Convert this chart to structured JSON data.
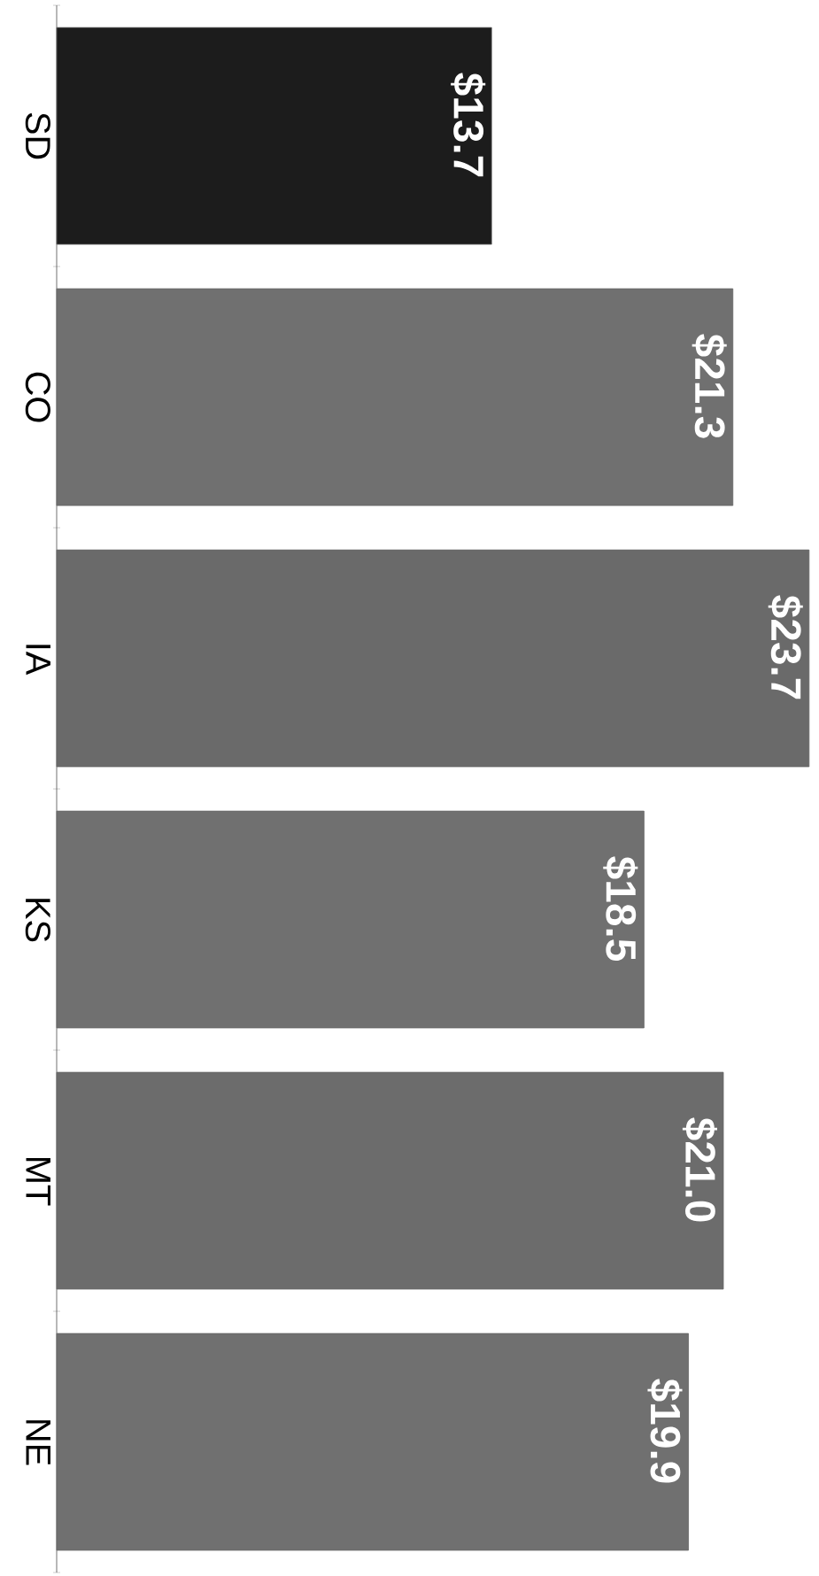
{
  "chart_data": {
    "type": "bar",
    "orientation": "horizontal",
    "categories": [
      "SD",
      "CO",
      "IA",
      "KS",
      "MT",
      "NE"
    ],
    "values": [
      13.7,
      21.3,
      23.7,
      18.5,
      21.0,
      19.9
    ],
    "value_labels": [
      "$13.7",
      "$21.3",
      "$23.7",
      "$18.5",
      "$21.0",
      "$19.9"
    ],
    "colors": [
      "#1c1c1c",
      "#707070",
      "#6a6a6a",
      "#707070",
      "#6c6c6c",
      "#707070"
    ]
  }
}
